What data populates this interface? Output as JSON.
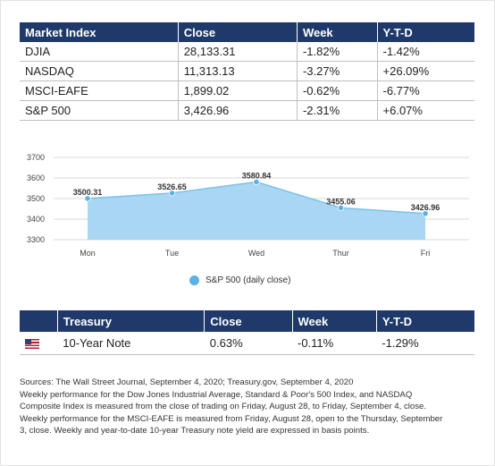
{
  "market_table": {
    "headers": [
      "Market Index",
      "Close",
      "Week",
      "Y-T-D"
    ],
    "rows": [
      [
        "DJIA",
        "28,133.31",
        "-1.82%",
        "-1.42%"
      ],
      [
        "NASDAQ",
        "11,313.13",
        "-3.27%",
        "+26.09%"
      ],
      [
        "MSCI-EAFE",
        "1,899.02",
        "-0.62%",
        "-6.77%"
      ],
      [
        "S&P 500",
        "3,426.96",
        "-2.31%",
        "+6.07%"
      ]
    ]
  },
  "chart_data": {
    "type": "area",
    "categories": [
      "Mon",
      "Tue",
      "Wed",
      "Thur",
      "Fri"
    ],
    "series": [
      {
        "name": "S&P 500 (daily close)",
        "values": [
          3500.31,
          3526.65,
          3580.84,
          3455.06,
          3426.96
        ]
      }
    ],
    "value_labels": [
      "3500.31",
      "3526.65",
      "3580.84",
      "3455.06",
      "3426.96"
    ],
    "y_ticks": [
      "3700",
      "3600",
      "3500",
      "3400",
      "3300"
    ],
    "ylim": [
      3300,
      3700
    ],
    "grid": true,
    "legend_position": "bottom",
    "colors": {
      "fill": "#a9d6f2",
      "line": "#7cc1ea",
      "marker": "#5bb1e3"
    }
  },
  "legend": {
    "label": "S&P 500 (daily close)"
  },
  "treasury_table": {
    "headers": [
      "",
      "Treasury",
      "Close",
      "Week",
      "Y-T-D"
    ],
    "row": {
      "flag": "us-flag-icon",
      "name": "10-Year Note",
      "close": "0.63%",
      "week": "-0.11%",
      "ytd": "-1.29%"
    }
  },
  "notes": [
    "Sources: The Wall Street Journal, September 4, 2020; Treasury.gov, September 4, 2020",
    "Weekly performance for the Dow Jones Industrial Average, Standard & Poor's 500 Index, and NASDAQ",
    "Composite Index is measured from the close of trading on Friday, August 28, to Friday, September 4, close.",
    "Weekly performance for the MSCI-EAFE is measured from Friday, August 28, open to the Thursday, September",
    "3, close. Weekly and year-to-date 10-year Treasury note yield are expressed in basis points."
  ]
}
